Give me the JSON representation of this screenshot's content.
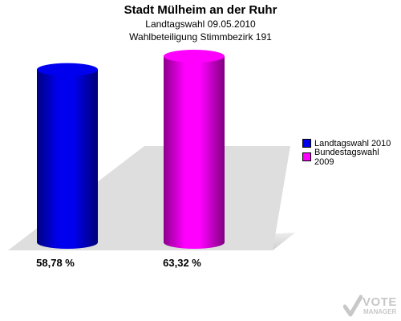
{
  "chart_data": {
    "type": "bar",
    "title": "Stadt Mülheim an der Ruhr",
    "subtitle_lines": [
      "Landtagswahl 09.05.2010",
      "Wahlbeteiligung Stimmbezirk 191"
    ],
    "categories": [
      "Landtagswahl 2010",
      "Bundestagswahl 2009"
    ],
    "values": [
      58.78,
      63.32
    ],
    "value_labels": [
      "58,78 %",
      "63,32 %"
    ],
    "colors": [
      "#0000ee",
      "#ff00ff"
    ],
    "ylim": [
      0,
      63.32
    ],
    "legend": {
      "placement": "right",
      "items": [
        {
          "label": "Landtagswahl 2010",
          "color": "#0000ee"
        },
        {
          "label": "Bundestagswahl 2009",
          "color": "#ff00ff"
        }
      ]
    }
  },
  "logo": {
    "line1": "VOTE",
    "line2": "MANAGER"
  }
}
